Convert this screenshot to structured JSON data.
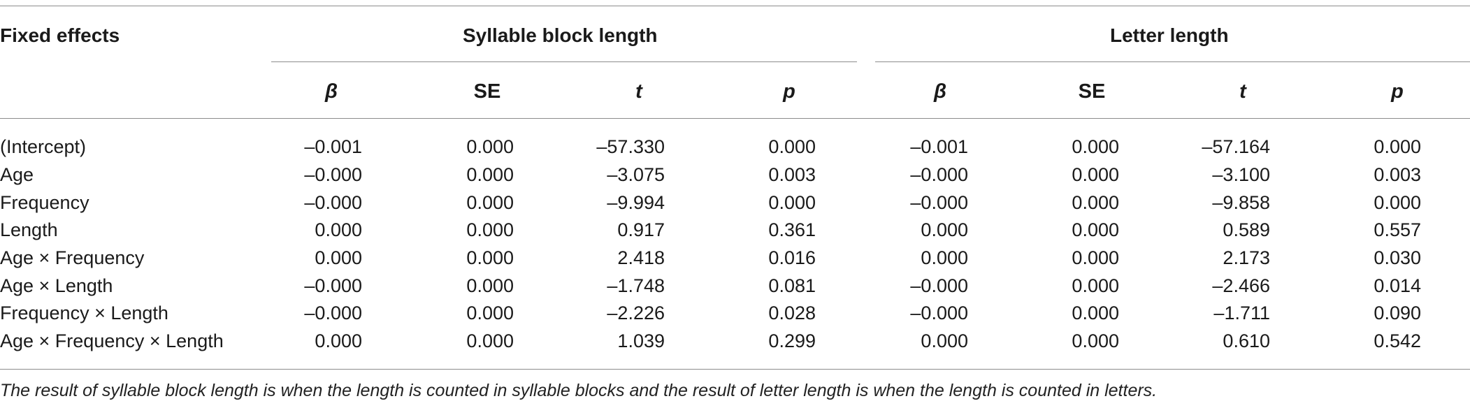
{
  "header": {
    "fixed_effects": "Fixed effects",
    "group1": "Syllable block length",
    "group2": "Letter length"
  },
  "columns": [
    "β",
    "SE",
    "t",
    "p",
    "β",
    "SE",
    "t",
    "p"
  ],
  "rows": [
    {
      "label": "(Intercept)",
      "values": [
        "–0.001",
        "0.000",
        "–57.330",
        "0.000",
        "–0.001",
        "0.000",
        "–57.164",
        "0.000"
      ]
    },
    {
      "label": "Age",
      "values": [
        "–0.000",
        "0.000",
        "–3.075",
        "0.003",
        "–0.000",
        "0.000",
        "–3.100",
        "0.003"
      ]
    },
    {
      "label": "Frequency",
      "values": [
        "–0.000",
        "0.000",
        "–9.994",
        "0.000",
        "–0.000",
        "0.000",
        "–9.858",
        "0.000"
      ]
    },
    {
      "label": "Length",
      "values": [
        "0.000",
        "0.000",
        "0.917",
        "0.361",
        "0.000",
        "0.000",
        "0.589",
        "0.557"
      ]
    },
    {
      "label": "Age × Frequency",
      "values": [
        "0.000",
        "0.000",
        "2.418",
        "0.016",
        "0.000",
        "0.000",
        "2.173",
        "0.030"
      ]
    },
    {
      "label": "Age × Length",
      "values": [
        "–0.000",
        "0.000",
        "–1.748",
        "0.081",
        "–0.000",
        "0.000",
        "–2.466",
        "0.014"
      ]
    },
    {
      "label": "Frequency × Length",
      "values": [
        "–0.000",
        "0.000",
        "–2.226",
        "0.028",
        "–0.000",
        "0.000",
        "–1.711",
        "0.090"
      ]
    },
    {
      "label": "Age × Frequency × Length",
      "values": [
        "0.000",
        "0.000",
        "1.039",
        "0.299",
        "0.000",
        "0.000",
        "0.610",
        "0.542"
      ]
    }
  ],
  "note": "The result of syllable block length is when the length is counted in syllable blocks and the result of letter length is when the length is counted in letters."
}
